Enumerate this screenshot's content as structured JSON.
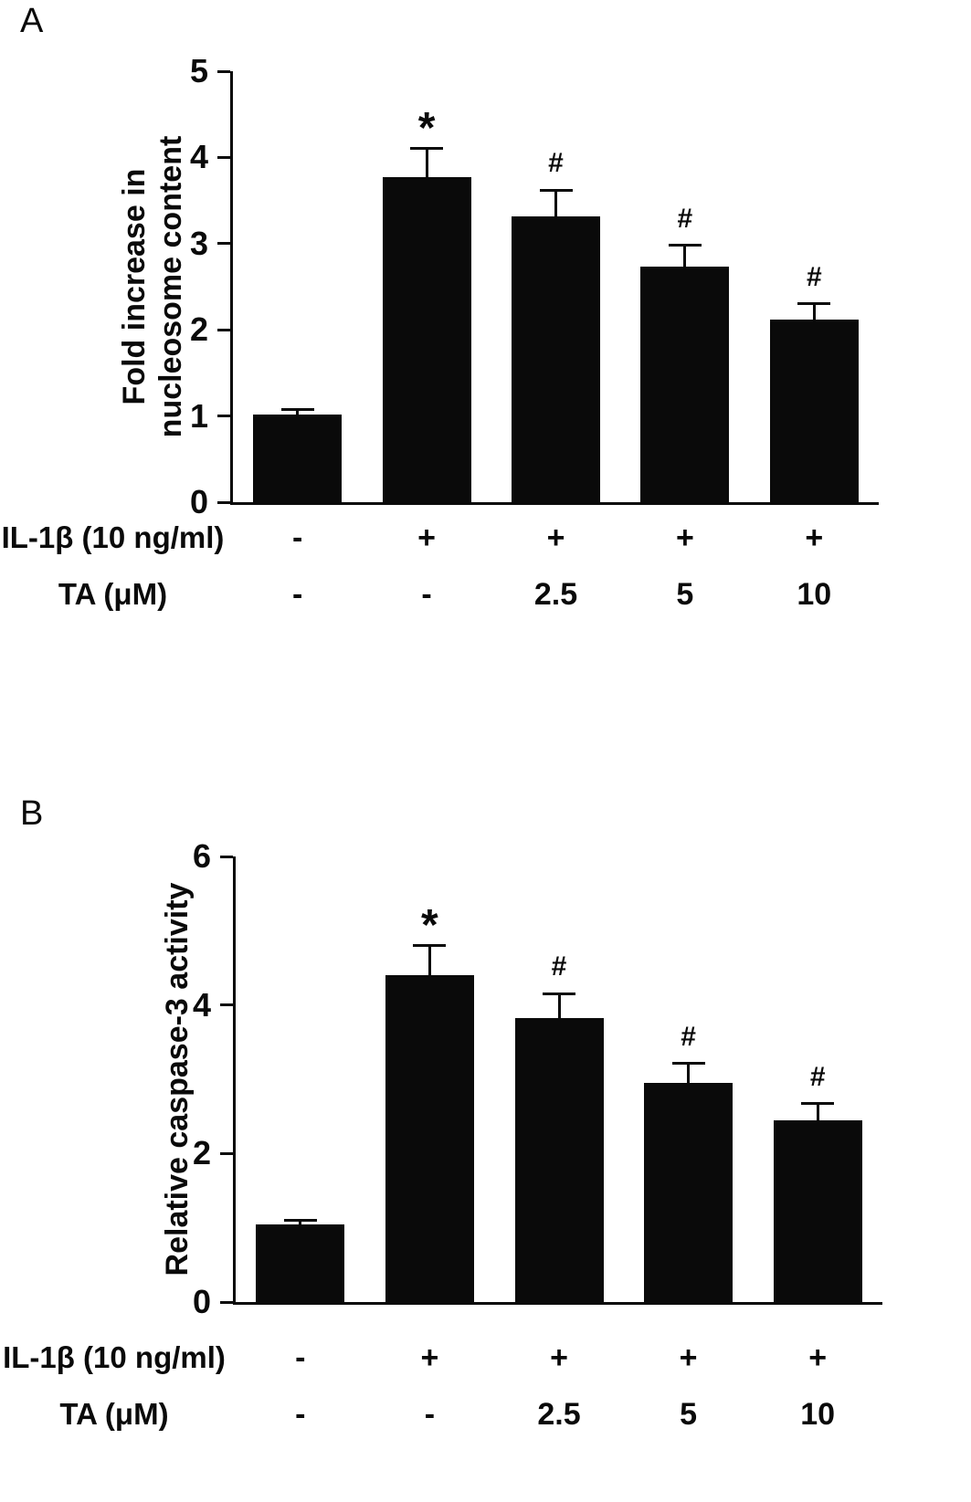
{
  "figure": {
    "background": "#ffffff",
    "ink_color": "#0a0a0a"
  },
  "chart_data": [
    {
      "type": "bar",
      "panel_label": "A",
      "title": "",
      "ylabel": "Fold increase in\nnucleosome content",
      "xlabel": "",
      "ylim": [
        0,
        5
      ],
      "yticks": [
        0,
        1,
        2,
        3,
        4,
        5
      ],
      "grid": false,
      "legend": "none",
      "bar_color": "#0a0a0a",
      "values": [
        1.02,
        3.77,
        3.32,
        2.73,
        2.12
      ],
      "errors": [
        0.05,
        0.33,
        0.3,
        0.25,
        0.18
      ],
      "annotations": [
        "",
        "*",
        "#",
        "#",
        "#"
      ],
      "x_rows": [
        {
          "label": "IL-1β (10 ng/ml)",
          "values": [
            "-",
            "+",
            "+",
            "+",
            "+"
          ]
        },
        {
          "label": "TA (μM)",
          "values": [
            "-",
            "-",
            "2.5",
            "5",
            "10"
          ]
        }
      ]
    },
    {
      "type": "bar",
      "panel_label": "B",
      "title": "",
      "ylabel": "Relative caspase-3  activity",
      "xlabel": "",
      "ylim": [
        0,
        6
      ],
      "yticks": [
        0,
        2,
        4,
        6
      ],
      "grid": false,
      "legend": "none",
      "bar_color": "#0a0a0a",
      "values": [
        1.05,
        4.4,
        3.82,
        2.95,
        2.45
      ],
      "errors": [
        0.05,
        0.4,
        0.33,
        0.26,
        0.22
      ],
      "annotations": [
        "",
        "*",
        "#",
        "#",
        "#"
      ],
      "x_rows": [
        {
          "label": "IL-1β (10 ng/ml)",
          "values": [
            "-",
            "+",
            "+",
            "+",
            "+"
          ]
        },
        {
          "label": "TA (μM)",
          "values": [
            "-",
            "-",
            "2.5",
            "5",
            "10"
          ]
        }
      ]
    }
  ]
}
